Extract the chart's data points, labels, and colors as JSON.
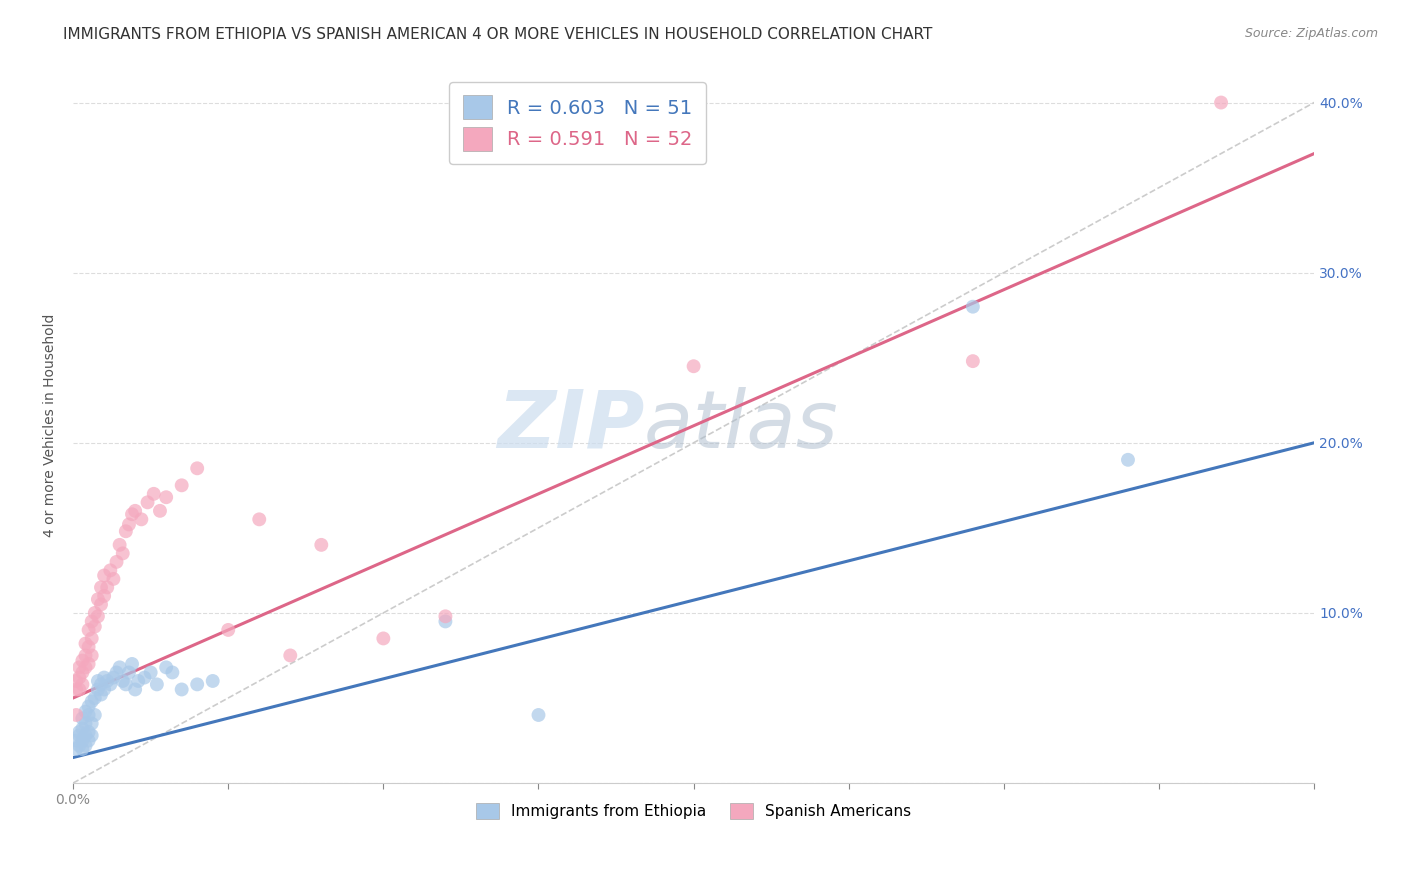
{
  "title": "IMMIGRANTS FROM ETHIOPIA VS SPANISH AMERICAN 4 OR MORE VEHICLES IN HOUSEHOLD CORRELATION CHART",
  "source": "Source: ZipAtlas.com",
  "ylabel": "4 or more Vehicles in Household",
  "xlim": [
    0.0,
    0.4
  ],
  "ylim": [
    0.0,
    0.42
  ],
  "xticks": [
    0.0,
    0.05,
    0.1,
    0.15,
    0.2,
    0.25,
    0.3,
    0.35,
    0.4
  ],
  "yticks": [
    0.0,
    0.1,
    0.2,
    0.3,
    0.4
  ],
  "xtick_labels_show": {
    "0.0": "0.0%",
    "0.40": "40.0%"
  },
  "yticklabels_right": [
    "",
    "10.0%",
    "20.0%",
    "30.0%",
    "40.0%"
  ],
  "legend_r_blue": "R = 0.603",
  "legend_n_blue": "N = 51",
  "legend_r_pink": "R = 0.591",
  "legend_n_pink": "N = 52",
  "blue_color": "#a8c8e8",
  "pink_color": "#f4a8be",
  "blue_line_color": "#4477bb",
  "pink_line_color": "#dd6688",
  "watermark_zip": "ZIP",
  "watermark_atlas": "atlas",
  "blue_scatter": [
    [
      0.001,
      0.02
    ],
    [
      0.001,
      0.025
    ],
    [
      0.002,
      0.022
    ],
    [
      0.002,
      0.028
    ],
    [
      0.002,
      0.03
    ],
    [
      0.003,
      0.02
    ],
    [
      0.003,
      0.025
    ],
    [
      0.003,
      0.032
    ],
    [
      0.003,
      0.038
    ],
    [
      0.004,
      0.022
    ],
    [
      0.004,
      0.028
    ],
    [
      0.004,
      0.035
    ],
    [
      0.004,
      0.042
    ],
    [
      0.005,
      0.025
    ],
    [
      0.005,
      0.03
    ],
    [
      0.005,
      0.04
    ],
    [
      0.005,
      0.045
    ],
    [
      0.006,
      0.028
    ],
    [
      0.006,
      0.035
    ],
    [
      0.006,
      0.048
    ],
    [
      0.007,
      0.04
    ],
    [
      0.007,
      0.05
    ],
    [
      0.008,
      0.055
    ],
    [
      0.008,
      0.06
    ],
    [
      0.009,
      0.052
    ],
    [
      0.009,
      0.058
    ],
    [
      0.01,
      0.055
    ],
    [
      0.01,
      0.062
    ],
    [
      0.011,
      0.06
    ],
    [
      0.012,
      0.058
    ],
    [
      0.013,
      0.062
    ],
    [
      0.014,
      0.065
    ],
    [
      0.015,
      0.068
    ],
    [
      0.016,
      0.06
    ],
    [
      0.017,
      0.058
    ],
    [
      0.018,
      0.065
    ],
    [
      0.019,
      0.07
    ],
    [
      0.02,
      0.055
    ],
    [
      0.021,
      0.06
    ],
    [
      0.023,
      0.062
    ],
    [
      0.025,
      0.065
    ],
    [
      0.027,
      0.058
    ],
    [
      0.03,
      0.068
    ],
    [
      0.032,
      0.065
    ],
    [
      0.035,
      0.055
    ],
    [
      0.04,
      0.058
    ],
    [
      0.045,
      0.06
    ],
    [
      0.12,
      0.095
    ],
    [
      0.15,
      0.04
    ],
    [
      0.29,
      0.28
    ],
    [
      0.34,
      0.19
    ]
  ],
  "pink_scatter": [
    [
      0.001,
      0.04
    ],
    [
      0.001,
      0.055
    ],
    [
      0.001,
      0.06
    ],
    [
      0.002,
      0.055
    ],
    [
      0.002,
      0.062
    ],
    [
      0.002,
      0.068
    ],
    [
      0.003,
      0.058
    ],
    [
      0.003,
      0.065
    ],
    [
      0.003,
      0.072
    ],
    [
      0.004,
      0.068
    ],
    [
      0.004,
      0.075
    ],
    [
      0.004,
      0.082
    ],
    [
      0.005,
      0.07
    ],
    [
      0.005,
      0.08
    ],
    [
      0.005,
      0.09
    ],
    [
      0.006,
      0.075
    ],
    [
      0.006,
      0.085
    ],
    [
      0.006,
      0.095
    ],
    [
      0.007,
      0.092
    ],
    [
      0.007,
      0.1
    ],
    [
      0.008,
      0.098
    ],
    [
      0.008,
      0.108
    ],
    [
      0.009,
      0.105
    ],
    [
      0.009,
      0.115
    ],
    [
      0.01,
      0.11
    ],
    [
      0.01,
      0.122
    ],
    [
      0.011,
      0.115
    ],
    [
      0.012,
      0.125
    ],
    [
      0.013,
      0.12
    ],
    [
      0.014,
      0.13
    ],
    [
      0.015,
      0.14
    ],
    [
      0.016,
      0.135
    ],
    [
      0.017,
      0.148
    ],
    [
      0.018,
      0.152
    ],
    [
      0.019,
      0.158
    ],
    [
      0.02,
      0.16
    ],
    [
      0.022,
      0.155
    ],
    [
      0.024,
      0.165
    ],
    [
      0.026,
      0.17
    ],
    [
      0.028,
      0.16
    ],
    [
      0.03,
      0.168
    ],
    [
      0.035,
      0.175
    ],
    [
      0.04,
      0.185
    ],
    [
      0.05,
      0.09
    ],
    [
      0.06,
      0.155
    ],
    [
      0.07,
      0.075
    ],
    [
      0.08,
      0.14
    ],
    [
      0.1,
      0.085
    ],
    [
      0.12,
      0.098
    ],
    [
      0.2,
      0.245
    ],
    [
      0.29,
      0.248
    ],
    [
      0.37,
      0.4
    ]
  ],
  "blue_line": [
    [
      0.0,
      0.015
    ],
    [
      0.4,
      0.2
    ]
  ],
  "pink_line": [
    [
      0.0,
      0.05
    ],
    [
      0.4,
      0.37
    ]
  ],
  "diagonal_line": [
    [
      0.0,
      0.0
    ],
    [
      0.42,
      0.42
    ]
  ],
  "background_color": "#ffffff",
  "grid_color": "#dddddd",
  "title_fontsize": 11,
  "axis_label_fontsize": 10,
  "tick_fontsize": 10
}
